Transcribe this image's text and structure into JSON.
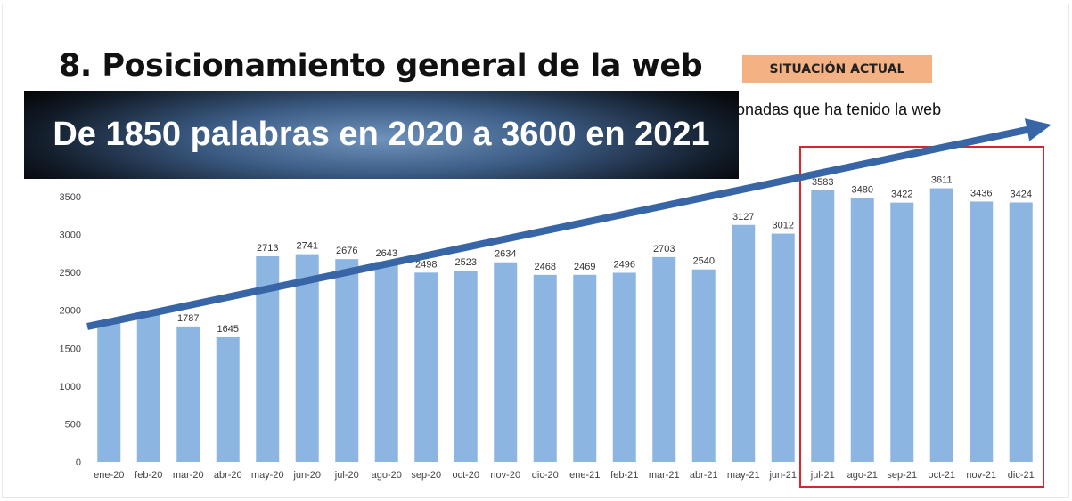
{
  "page": {
    "title": "8. Posicionamiento general de la web",
    "badge": "SITUACIÓN ACTUAL",
    "subtitle_fragment": "onadas que ha tenido la web",
    "highlight": "De 1850 palabras en 2020 a 3600 en 2021"
  },
  "colors": {
    "bar": "#8db5e2",
    "trend_arrow": "#3765a6",
    "highlight_box": "#d9262c",
    "badge_bg": "#f4b183",
    "axis_text": "#444444"
  },
  "chart_data": {
    "type": "bar",
    "categories": [
      "ene-20",
      "feb-20",
      "mar-20",
      "abr-20",
      "may-20",
      "jun-20",
      "jul-20",
      "ago-20",
      "sep-20",
      "oct-20",
      "nov-20",
      "dic-20",
      "ene-21",
      "feb-21",
      "mar-21",
      "abr-21",
      "may-21",
      "jun-21",
      "jul-21",
      "ago-21",
      "sep-21",
      "oct-21",
      "nov-21",
      "dic-21"
    ],
    "values": [
      1850,
      1950,
      1787,
      1645,
      2713,
      2741,
      2676,
      2643,
      2498,
      2523,
      2634,
      2468,
      2469,
      2496,
      2703,
      2540,
      3127,
      3012,
      3583,
      3480,
      3422,
      3611,
      3436,
      3424
    ],
    "data_labels": [
      "",
      "",
      "1787",
      "1645",
      "2713",
      "2741",
      "2676",
      "2643",
      "2498",
      "2523",
      "2634",
      "2468",
      "2469",
      "2496",
      "2703",
      "2540",
      "3127",
      "3012",
      "3583",
      "3480",
      "3422",
      "3611",
      "3436",
      "3424"
    ],
    "y_ticks": [
      0,
      500,
      1000,
      1500,
      2000,
      2500,
      3000,
      3500
    ],
    "ylim": [
      0,
      4000
    ],
    "grid": false,
    "legend": "none",
    "trend_arrow": {
      "from": "ene-20",
      "to": "dic-21",
      "start_value": 1950,
      "end_value": 4450
    },
    "highlight_range": [
      "jul-21",
      "dic-21"
    ]
  }
}
